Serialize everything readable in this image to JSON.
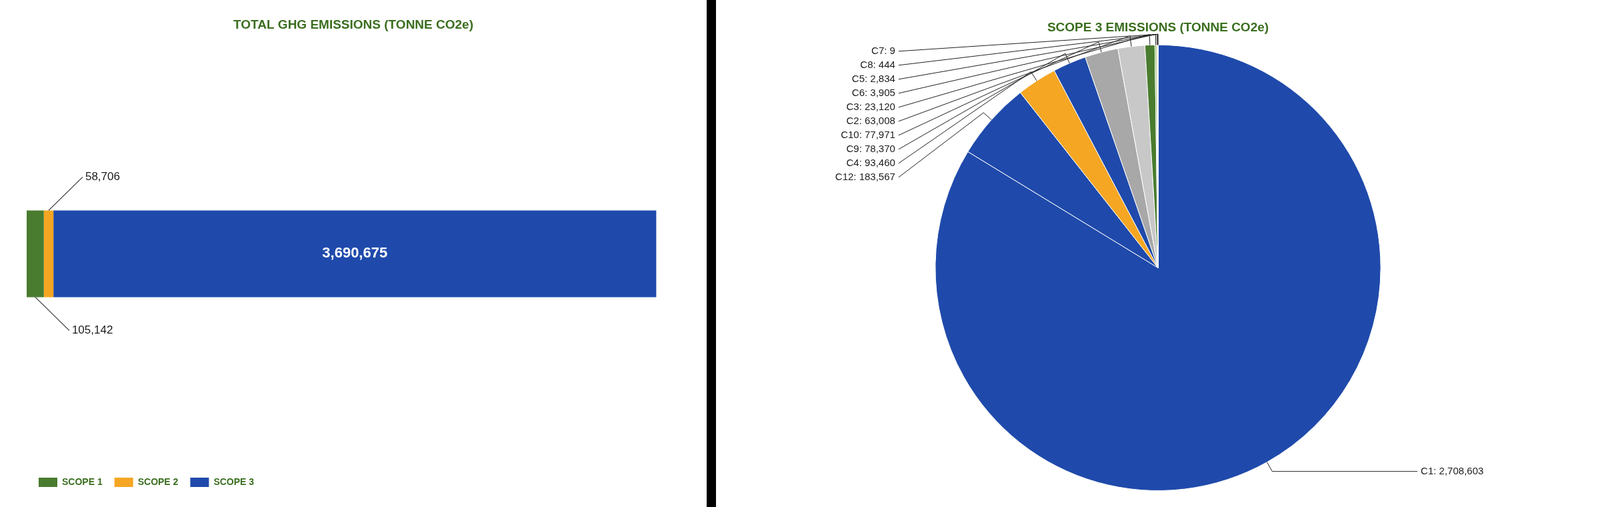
{
  "chart_data": [
    {
      "type": "bar",
      "title": "TOTAL GHG EMISSIONS (TONNE CO2e)",
      "orientation": "horizontal",
      "stacked": true,
      "categories": [
        null
      ],
      "series": [
        {
          "name": "SCOPE 1",
          "color": "#4a7c2f",
          "values": [
            105142
          ],
          "value_labels": [
            "105,142"
          ]
        },
        {
          "name": "SCOPE 2",
          "color": "#f5a623",
          "values": [
            58706
          ],
          "value_labels": [
            "58,706"
          ]
        },
        {
          "name": "SCOPE 3",
          "color": "#1f4aab",
          "values": [
            3690675
          ],
          "value_labels": [
            "3,690,675"
          ]
        }
      ],
      "data_labels": true,
      "tick_labels": false,
      "grid": false,
      "legend": "lower left"
    },
    {
      "type": "pie",
      "title": "SCOPE 3 EMISSIONS (TONNE CO2e)",
      "categories": [
        "C1",
        "C12",
        "C4",
        "C9",
        "C10",
        "C2",
        "C3",
        "C6",
        "C5",
        "C8",
        "C7"
      ],
      "values": [
        2708603,
        183567,
        93460,
        78370,
        77971,
        63008,
        23120,
        3905,
        2834,
        444,
        9
      ],
      "colors": [
        "#1f4aab",
        "#1f4aab",
        "#f5a623",
        "#1f4aab",
        "#a8a8a8",
        "#c8c8c8",
        "#4a7c2f",
        "#8ab85a",
        "#b8cc80",
        "#909090",
        "#2a5c1a"
      ],
      "data_labels": true,
      "value_labels": [
        "C1: 2,708,603",
        "C12: 183,567",
        "C4: 93,460",
        "C9: 78,370",
        "C10: 77,971",
        "C2: 63,008",
        "C3: 23,120",
        "C6: 3,905",
        "C5: 2,834",
        "C8: 444",
        "C7: 9"
      ]
    }
  ]
}
